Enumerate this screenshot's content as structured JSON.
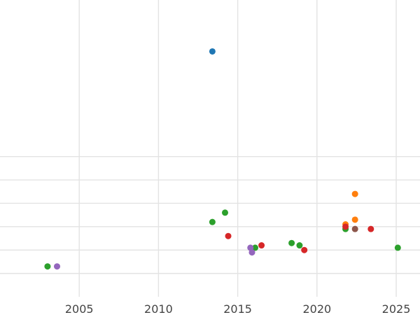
{
  "chart_data": {
    "type": "scatter",
    "title": "",
    "xlabel": "",
    "ylabel": "",
    "xlim": [
      2000,
      2026.5
    ],
    "ylim": [
      0,
      12.7
    ],
    "grid": true,
    "x_ticks": [
      2005,
      2010,
      2015,
      2020,
      2025
    ],
    "y_grid": [
      1,
      2,
      3,
      4,
      5,
      6
    ],
    "series": [
      {
        "color": "#1f77b4",
        "points": [
          {
            "x": 2013.4,
            "y": 10.5
          }
        ]
      },
      {
        "color": "#ff7f0e",
        "points": [
          {
            "x": 2022.4,
            "y": 4.4
          },
          {
            "x": 2022.4,
            "y": 3.3
          },
          {
            "x": 2021.8,
            "y": 3.1
          }
        ]
      },
      {
        "color": "#2ca02c",
        "points": [
          {
            "x": 2003.0,
            "y": 1.3
          },
          {
            "x": 2013.4,
            "y": 3.2
          },
          {
            "x": 2014.2,
            "y": 3.6
          },
          {
            "x": 2016.1,
            "y": 2.1
          },
          {
            "x": 2018.4,
            "y": 2.3
          },
          {
            "x": 2018.9,
            "y": 2.2
          },
          {
            "x": 2021.8,
            "y": 2.9
          },
          {
            "x": 2025.1,
            "y": 2.1
          }
        ]
      },
      {
        "color": "#d62728",
        "points": [
          {
            "x": 2014.4,
            "y": 2.6
          },
          {
            "x": 2016.5,
            "y": 2.2
          },
          {
            "x": 2019.2,
            "y": 2.0
          },
          {
            "x": 2021.8,
            "y": 3.0
          },
          {
            "x": 2023.4,
            "y": 2.9
          }
        ]
      },
      {
        "color": "#9467bd",
        "points": [
          {
            "x": 2003.6,
            "y": 1.3
          },
          {
            "x": 2015.8,
            "y": 2.1
          },
          {
            "x": 2015.9,
            "y": 1.9
          }
        ]
      },
      {
        "color": "#8c564b",
        "points": [
          {
            "x": 2022.4,
            "y": 2.9
          }
        ]
      }
    ]
  }
}
